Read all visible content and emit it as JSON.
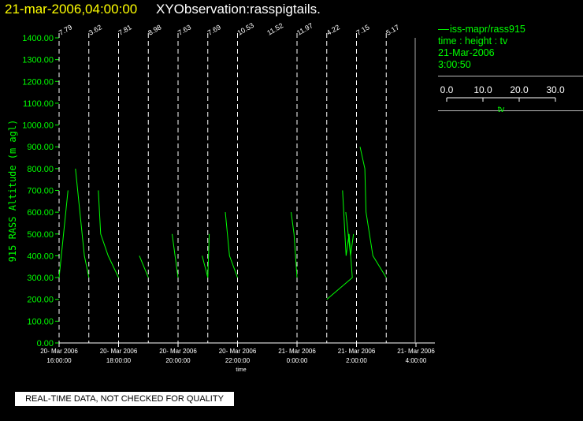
{
  "header": {
    "date": "21-mar-2006,04:00:00",
    "observation": "XYObservation:rasspigtails."
  },
  "legend": {
    "series": "iss-mapr/rass915",
    "desc": "time : height : tv",
    "date": "21-Mar-2006",
    "time": "3:00:50",
    "scale_ticks": [
      "0.0",
      "10.0",
      "20.0",
      "30.0"
    ],
    "scale_label": "tv"
  },
  "footer": {
    "note": "REAL-TIME DATA, NOT CHECKED FOR QUALITY"
  },
  "colors": {
    "background": "#000000",
    "data": "#00ff00",
    "title_date": "#ffff00",
    "axis": "#ffffff"
  },
  "chart_data": {
    "type": "line",
    "ylabel": "915 RASS Altitude (m agl)",
    "xlabel": "time",
    "ylim": [
      0,
      1400
    ],
    "yticks": [
      "0.00",
      "100.00",
      "200.00",
      "300.00",
      "400.00",
      "500.00",
      "600.00",
      "700.00",
      "800.00",
      "900.00",
      "1000.00",
      "1100.00",
      "1200.00",
      "1300.00",
      "1400.00"
    ],
    "xlim_hours": [
      16,
      28
    ],
    "xticks": [
      {
        "hour": 16,
        "date": "20- Mar 2006",
        "time": "16:00:00"
      },
      {
        "hour": 18,
        "date": "20- Mar 2006",
        "time": "18:00:00"
      },
      {
        "hour": 20,
        "date": "20- Mar 2006",
        "time": "20:00:00"
      },
      {
        "hour": 22,
        "date": "20- Mar 2006",
        "time": "22:00:00"
      },
      {
        "hour": 24,
        "date": "21- Mar 2006",
        "time": "0:00:00"
      },
      {
        "hour": 26,
        "date": "21- Mar 2006",
        "time": "2:00:00"
      },
      {
        "hour": 28,
        "date": "21- Mar 2006",
        "time": "4:00:00"
      }
    ],
    "tv_scale_per_hour": 30,
    "profiles": [
      {
        "hour": 16,
        "label": "7.79",
        "points": [
          [
            0,
            300
          ],
          [
            0.3,
            700
          ]
        ]
      },
      {
        "hour": 17,
        "label": "3.62",
        "points": [
          [
            -0.45,
            800
          ],
          [
            -0.3,
            600
          ],
          [
            -0.15,
            400
          ],
          [
            0,
            300
          ]
        ]
      },
      {
        "hour": 18,
        "label": "7.81",
        "points": [
          [
            -0.68,
            700
          ],
          [
            -0.6,
            500
          ],
          [
            -0.35,
            400
          ],
          [
            0,
            300
          ]
        ]
      },
      {
        "hour": 19,
        "label": "8.98",
        "points": [
          [
            -0.3,
            400
          ],
          [
            0,
            300
          ]
        ]
      },
      {
        "hour": 20,
        "label": "7.63",
        "points": [
          [
            -0.2,
            500
          ],
          [
            -0.1,
            400
          ],
          [
            0,
            300
          ]
        ]
      },
      {
        "hour": 21,
        "label": "7.69",
        "points": [
          [
            -0.19,
            400
          ],
          [
            0,
            300
          ],
          [
            0.05,
            500
          ]
        ]
      },
      {
        "hour": 22,
        "label": "10.53",
        "points": [
          [
            -0.41,
            600
          ],
          [
            -0.27,
            400
          ],
          [
            0,
            300
          ]
        ]
      },
      {
        "hour": 24,
        "label": "11.97",
        "points": [
          [
            -0.2,
            600
          ],
          [
            -0.1,
            500
          ],
          [
            0,
            300
          ]
        ]
      },
      {
        "hour": 25,
        "label": "4.22",
        "points": [
          [
            0,
            200
          ],
          [
            0.86,
            300
          ],
          [
            0.75,
            500
          ],
          [
            0.65,
            400
          ],
          [
            0.53,
            700
          ]
        ]
      },
      {
        "hour": 26,
        "label": "7.15",
        "points": [
          [
            -0.36,
            600
          ],
          [
            -0.2,
            400
          ],
          [
            -0.1,
            500
          ]
        ]
      },
      {
        "hour": 27,
        "label": "5.17",
        "points": [
          [
            -0.88,
            900
          ],
          [
            -0.72,
            800
          ],
          [
            -0.68,
            600
          ],
          [
            -0.45,
            400
          ],
          [
            0,
            300
          ]
        ]
      }
    ],
    "extra_labels": [
      {
        "hour": 23,
        "label": "11.52"
      }
    ]
  }
}
